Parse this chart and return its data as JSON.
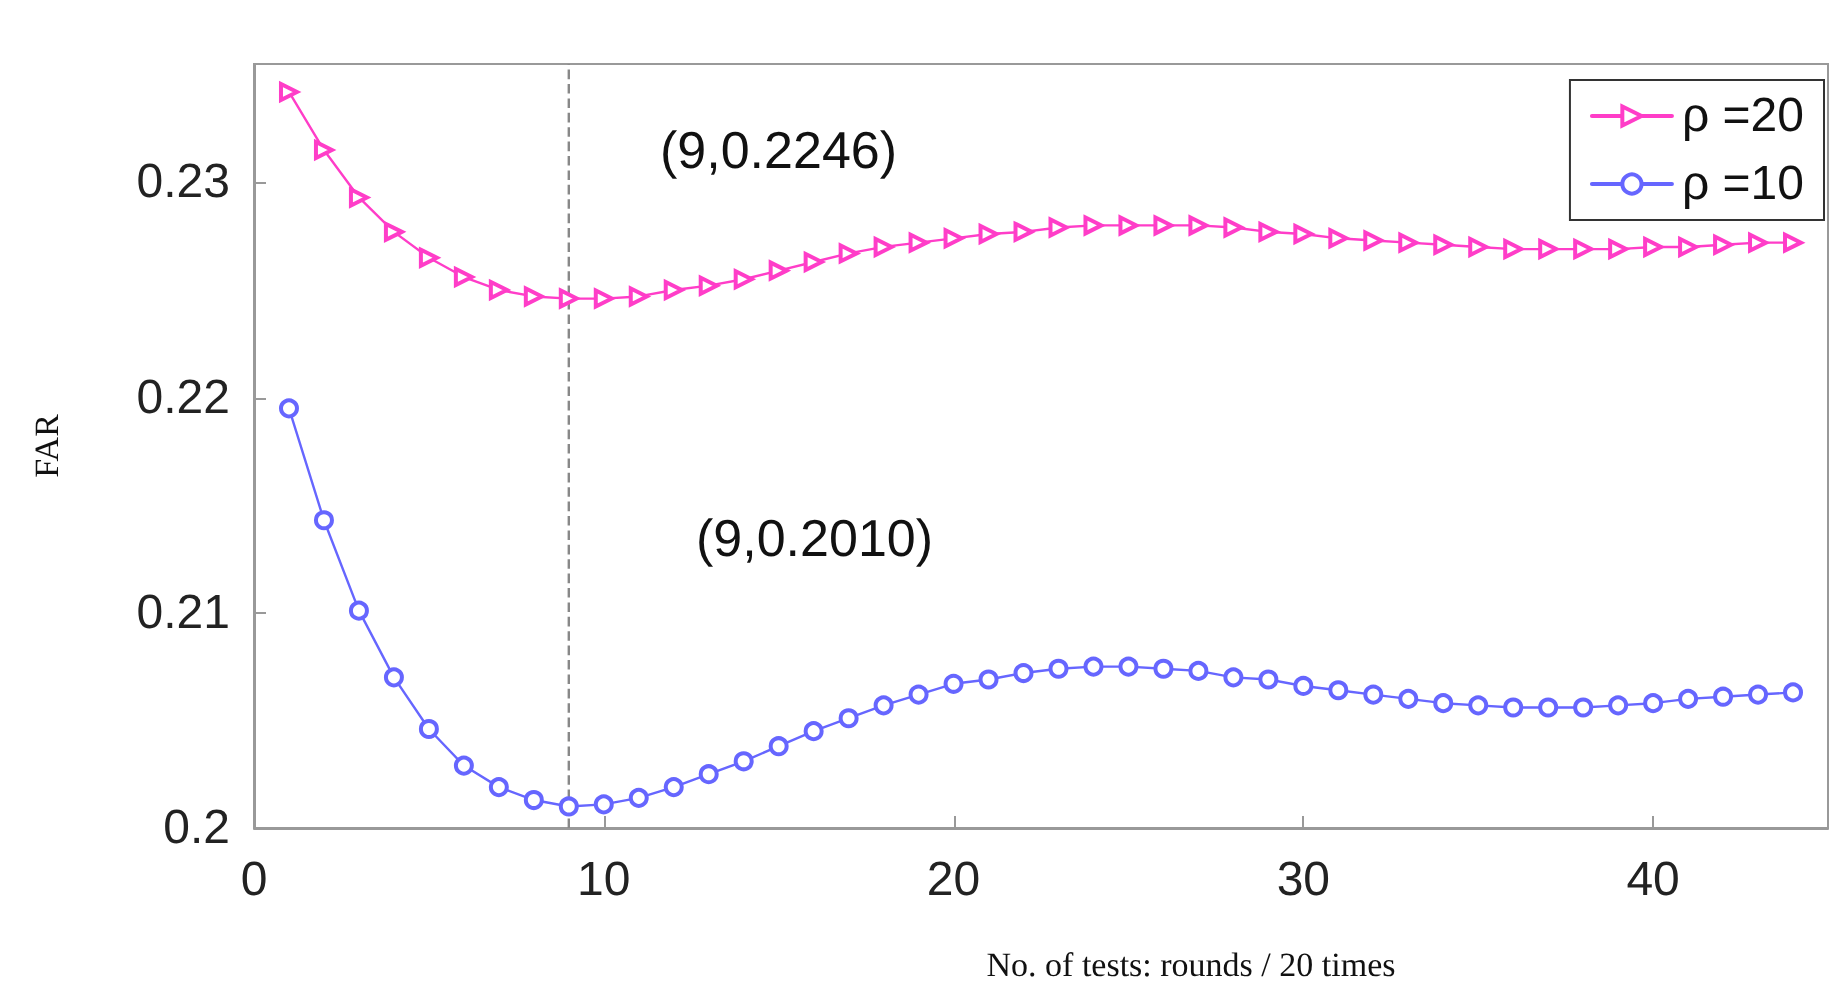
{
  "chart_data": {
    "type": "line",
    "xlabel": "No. of tests: rounds / 20 times",
    "ylabel": "FAR",
    "x": [
      1,
      2,
      3,
      4,
      5,
      6,
      7,
      8,
      9,
      10,
      11,
      12,
      13,
      14,
      15,
      16,
      17,
      18,
      19,
      20,
      21,
      22,
      23,
      24,
      25,
      26,
      27,
      28,
      29,
      30,
      31,
      32,
      33,
      34,
      35,
      36,
      37,
      38,
      39,
      40,
      41,
      42,
      43,
      44
    ],
    "series": [
      {
        "name": "ρ =20",
        "color": "#ff3dc8",
        "marker": "triangle",
        "values": [
          0.2342,
          0.2315,
          0.2293,
          0.2277,
          0.2265,
          0.2256,
          0.225,
          0.2247,
          0.2246,
          0.2246,
          0.2247,
          0.225,
          0.2252,
          0.2255,
          0.2259,
          0.2263,
          0.2267,
          0.227,
          0.2272,
          0.2274,
          0.2276,
          0.2277,
          0.2279,
          0.228,
          0.228,
          0.228,
          0.228,
          0.2279,
          0.2277,
          0.2276,
          0.2274,
          0.2273,
          0.2272,
          0.2271,
          0.227,
          0.2269,
          0.2269,
          0.2269,
          0.2269,
          0.227,
          0.227,
          0.2271,
          0.2272,
          0.2272
        ]
      },
      {
        "name": "ρ =10",
        "color": "#6666ff",
        "marker": "circle",
        "values": [
          0.2195,
          0.2143,
          0.2101,
          0.207,
          0.2046,
          0.2029,
          0.2019,
          0.2013,
          0.201,
          0.2011,
          0.2014,
          0.2019,
          0.2025,
          0.2031,
          0.2038,
          0.2045,
          0.2051,
          0.2057,
          0.2062,
          0.2067,
          0.2069,
          0.2072,
          0.2074,
          0.2075,
          0.2075,
          0.2074,
          0.2073,
          0.207,
          0.2069,
          0.2066,
          0.2064,
          0.2062,
          0.206,
          0.2058,
          0.2057,
          0.2056,
          0.2056,
          0.2056,
          0.2057,
          0.2058,
          0.206,
          0.2061,
          0.2062,
          0.2063
        ]
      }
    ],
    "annotations": [
      "(9,0.2246)",
      "(9,0.2010)"
    ],
    "ref_lines": [
      {
        "axis": "x",
        "value": 9,
        "color": "#888888",
        "line_style": "dashed"
      }
    ],
    "xlim": [
      0,
      45
    ],
    "xticks": [
      0,
      10,
      20,
      30,
      40
    ],
    "ylim": [
      0.2,
      0.2355
    ],
    "yticks": [
      0.2,
      0.21,
      0.22,
      0.23
    ],
    "grid": false,
    "legend": "top right",
    "line_style": "solid"
  }
}
